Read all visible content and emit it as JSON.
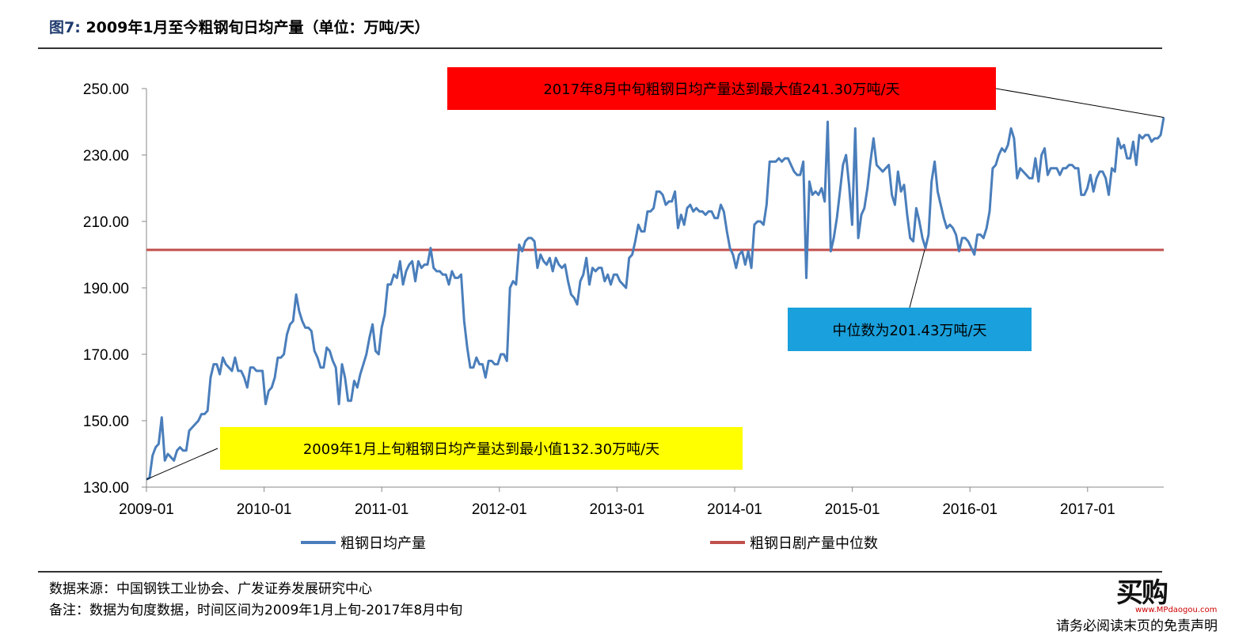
{
  "figure": {
    "label": "图7:",
    "title": "2009年1月至今粗钢旬日均产量（单位：万吨/天）"
  },
  "annotations": {
    "max": "2017年8月中旬粗钢日均产量达到最大值241.30万吨/天",
    "median": "中位数为201.43万吨/天",
    "min": "2009年1月上旬粗钢日均产量达到最小值132.30万吨/天"
  },
  "notes": {
    "source": "数据来源：中国钢铁工业协会、广发证券发展研究中心",
    "remark": "备注：数据为旬度数据，时间区间为2009年1月上旬-2017年8月中旬"
  },
  "disclaimer": "请务必阅读末页的免责声明",
  "watermark": {
    "text": "买购",
    "url": "www.MPdaogou.com"
  },
  "colors": {
    "series": "#4a7ebb",
    "median": "#c0504d",
    "max_box": "#ff0000",
    "median_box": "#1aa0dc",
    "min_box": "#ffff00"
  },
  "chart_data": {
    "type": "line",
    "title": "",
    "xlabel": "",
    "ylabel": "",
    "ylim": [
      130,
      250
    ],
    "yticks": [
      "130.00",
      "150.00",
      "170.00",
      "190.00",
      "210.00",
      "230.00",
      "250.00"
    ],
    "xticks": [
      "2009-01",
      "2010-01",
      "2011-01",
      "2012-01",
      "2013-01",
      "2014-01",
      "2015-01",
      "2016-01",
      "2017-01"
    ],
    "legend": [
      "粗钢日均产量",
      "粗钢日剧产量中位数"
    ],
    "legend_position": "bottom",
    "grid": false,
    "x_start": "2009-01-上旬",
    "x_end": "2017-08-中旬",
    "x_step": "旬",
    "series": [
      {
        "name": "粗钢日均产量",
        "values": [
          132.3,
          132.8,
          139.5,
          142,
          143,
          151,
          138,
          140,
          139,
          138,
          141,
          142,
          141,
          141,
          147,
          148,
          149,
          150,
          152,
          152,
          153,
          163,
          167,
          167,
          164,
          169,
          167,
          166,
          165,
          169,
          165,
          165,
          163,
          160,
          166,
          166,
          165,
          165,
          165,
          155,
          159,
          160,
          163,
          169,
          169,
          170,
          176,
          179,
          180,
          188,
          183,
          180,
          178,
          178,
          177,
          171,
          169,
          166,
          166,
          172,
          171,
          168,
          166,
          155,
          167,
          163,
          156,
          156,
          162,
          160,
          164,
          167,
          170,
          175,
          179,
          171,
          170,
          178,
          182,
          191,
          191,
          194,
          193,
          198,
          191,
          195,
          197,
          198,
          192,
          198,
          196,
          197,
          197,
          202,
          196,
          195,
          195,
          194,
          194,
          191,
          195,
          193,
          193,
          194,
          180,
          172,
          166,
          166,
          169,
          167,
          167,
          163,
          168,
          168,
          167,
          167,
          170,
          170,
          168,
          190,
          192,
          191,
          203,
          201,
          204,
          205,
          205,
          204,
          196,
          200,
          198,
          197,
          199,
          195,
          199,
          197,
          196,
          197,
          192,
          188,
          187,
          185,
          192,
          194,
          199,
          191,
          196,
          195,
          196,
          196,
          192,
          194,
          191,
          194,
          194,
          192,
          191,
          190,
          199,
          200,
          204,
          209,
          207,
          207,
          213,
          213,
          214,
          219,
          219,
          218,
          215,
          216,
          216,
          219,
          208,
          212,
          209,
          214,
          215,
          213,
          214,
          213,
          213,
          212,
          213,
          213,
          211,
          211,
          215,
          213,
          207,
          202,
          200,
          196,
          200,
          201,
          197,
          201,
          196,
          209,
          210,
          210,
          209,
          215,
          228,
          228,
          228,
          229,
          228,
          229,
          229,
          227,
          225,
          224,
          224,
          228,
          193,
          222,
          218,
          219,
          218,
          220,
          216,
          240,
          201,
          205,
          211,
          219,
          227,
          230,
          221,
          209,
          238,
          205,
          212,
          214,
          220,
          228,
          235,
          227,
          226,
          225,
          226,
          227,
          218,
          215,
          225,
          219,
          221,
          212,
          205,
          204,
          214,
          210,
          205,
          202,
          206,
          222,
          228,
          219,
          215,
          211,
          208,
          209,
          208,
          206,
          201,
          205,
          205,
          204,
          202,
          200,
          206,
          206,
          205,
          208,
          213,
          226,
          227,
          230,
          232,
          231,
          233,
          238,
          235,
          223,
          226,
          225,
          224,
          223,
          223,
          229,
          222,
          230,
          232,
          224,
          226,
          226,
          226,
          224,
          226,
          226,
          227,
          227,
          226,
          226,
          218,
          218,
          220,
          224,
          219,
          223,
          225,
          225,
          223,
          218,
          226,
          225,
          235,
          232,
          233,
          229,
          229,
          234,
          227,
          236,
          235,
          236,
          236,
          234,
          235,
          235,
          236,
          241.3
        ]
      },
      {
        "name": "粗钢日剧产量中位数",
        "values": [
          201.43,
          201.43
        ]
      }
    ]
  }
}
